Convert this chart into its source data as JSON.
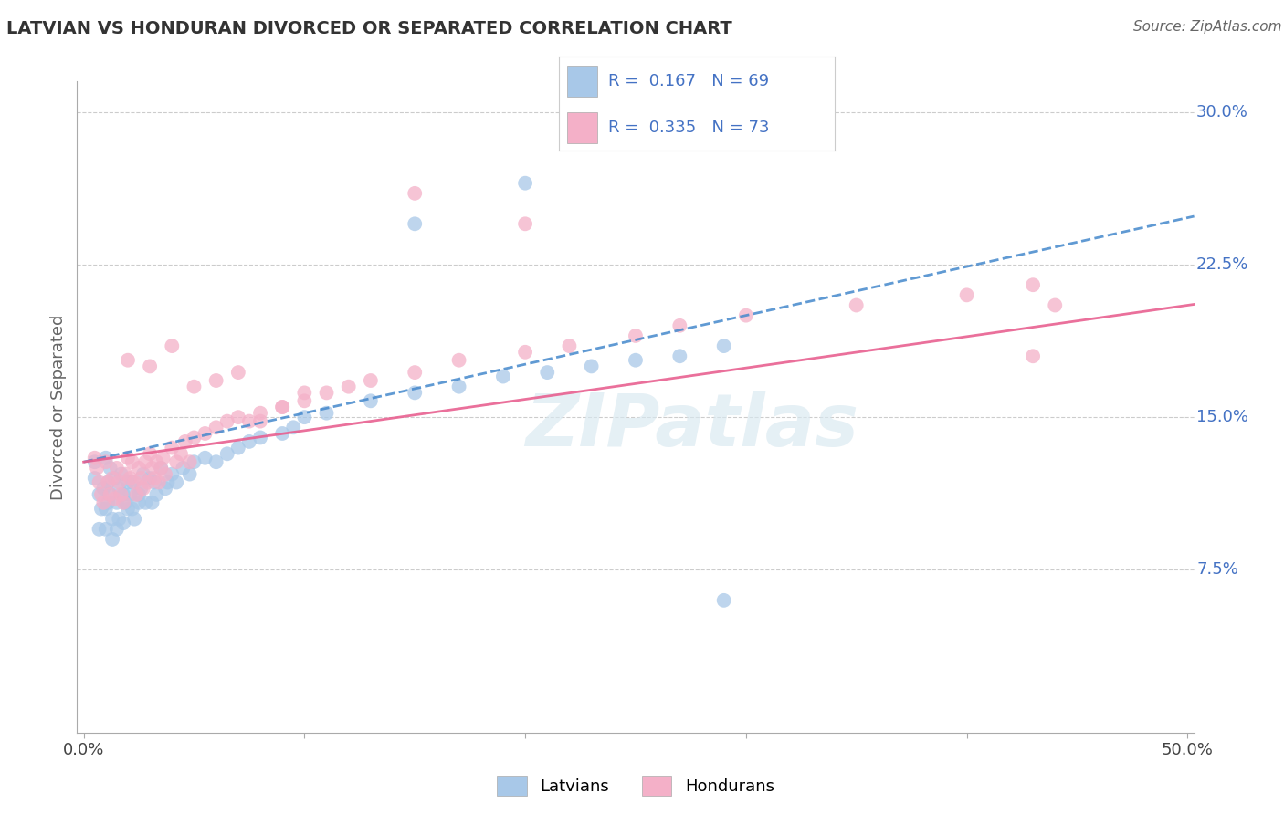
{
  "title": "LATVIAN VS HONDURAN DIVORCED OR SEPARATED CORRELATION CHART",
  "source_text": "Source: ZipAtlas.com",
  "watermark": "ZIPatlas",
  "ylabel": "Divorced or Separated",
  "xlim": [
    -0.003,
    0.503
  ],
  "ylim": [
    -0.005,
    0.315
  ],
  "xticks": [
    0.0,
    0.1,
    0.2,
    0.3,
    0.4,
    0.5
  ],
  "xticklabels": [
    "0.0%",
    "",
    "",
    "",
    "",
    "50.0%"
  ],
  "yticks_right": [
    0.075,
    0.15,
    0.225,
    0.3
  ],
  "ytick_labels_right": [
    "7.5%",
    "15.0%",
    "22.5%",
    "30.0%"
  ],
  "latvian_color": "#a8c8e8",
  "honduran_color": "#f4b0c8",
  "latvian_line_color": "#4488cc",
  "honduran_line_color": "#e86090",
  "grid_color": "#cccccc",
  "latvian_R": 0.167,
  "latvian_N": 69,
  "honduran_R": 0.335,
  "honduran_N": 73,
  "legend_R_color": "#4472c4",
  "background_color": "#ffffff",
  "latvians_x": [
    0.005,
    0.005,
    0.007,
    0.007,
    0.008,
    0.009,
    0.01,
    0.01,
    0.01,
    0.011,
    0.011,
    0.012,
    0.012,
    0.013,
    0.013,
    0.014,
    0.015,
    0.015,
    0.016,
    0.016,
    0.017,
    0.018,
    0.018,
    0.019,
    0.02,
    0.02,
    0.021,
    0.022,
    0.022,
    0.023,
    0.025,
    0.025,
    0.026,
    0.027,
    0.028,
    0.03,
    0.031,
    0.032,
    0.033,
    0.035,
    0.037,
    0.038,
    0.04,
    0.042,
    0.045,
    0.048,
    0.05,
    0.055,
    0.06,
    0.065,
    0.07,
    0.075,
    0.08,
    0.09,
    0.095,
    0.1,
    0.11,
    0.13,
    0.15,
    0.17,
    0.19,
    0.21,
    0.23,
    0.25,
    0.27,
    0.29,
    0.29,
    0.15,
    0.2
  ],
  "latvians_y": [
    0.128,
    0.12,
    0.112,
    0.095,
    0.105,
    0.115,
    0.13,
    0.105,
    0.095,
    0.108,
    0.118,
    0.125,
    0.112,
    0.1,
    0.09,
    0.12,
    0.108,
    0.095,
    0.115,
    0.1,
    0.122,
    0.112,
    0.098,
    0.108,
    0.118,
    0.105,
    0.112,
    0.118,
    0.105,
    0.1,
    0.112,
    0.108,
    0.115,
    0.122,
    0.108,
    0.12,
    0.108,
    0.118,
    0.112,
    0.125,
    0.115,
    0.118,
    0.122,
    0.118,
    0.125,
    0.122,
    0.128,
    0.13,
    0.128,
    0.132,
    0.135,
    0.138,
    0.14,
    0.142,
    0.145,
    0.15,
    0.152,
    0.158,
    0.162,
    0.165,
    0.17,
    0.172,
    0.175,
    0.178,
    0.18,
    0.185,
    0.06,
    0.245,
    0.265
  ],
  "hondurans_x": [
    0.005,
    0.006,
    0.007,
    0.008,
    0.009,
    0.01,
    0.011,
    0.012,
    0.013,
    0.014,
    0.015,
    0.016,
    0.017,
    0.018,
    0.019,
    0.02,
    0.021,
    0.022,
    0.023,
    0.024,
    0.025,
    0.026,
    0.027,
    0.028,
    0.029,
    0.03,
    0.031,
    0.032,
    0.033,
    0.034,
    0.035,
    0.036,
    0.037,
    0.04,
    0.042,
    0.044,
    0.046,
    0.048,
    0.05,
    0.055,
    0.06,
    0.065,
    0.07,
    0.075,
    0.08,
    0.09,
    0.1,
    0.11,
    0.12,
    0.13,
    0.15,
    0.17,
    0.2,
    0.22,
    0.25,
    0.27,
    0.3,
    0.35,
    0.4,
    0.43,
    0.44,
    0.02,
    0.03,
    0.04,
    0.05,
    0.06,
    0.07,
    0.08,
    0.09,
    0.1,
    0.15,
    0.2,
    0.43
  ],
  "hondurans_y": [
    0.13,
    0.125,
    0.118,
    0.112,
    0.108,
    0.128,
    0.118,
    0.112,
    0.12,
    0.11,
    0.125,
    0.118,
    0.112,
    0.108,
    0.122,
    0.13,
    0.12,
    0.128,
    0.118,
    0.112,
    0.125,
    0.12,
    0.115,
    0.128,
    0.118,
    0.132,
    0.125,
    0.12,
    0.128,
    0.118,
    0.125,
    0.13,
    0.122,
    0.135,
    0.128,
    0.132,
    0.138,
    0.128,
    0.14,
    0.142,
    0.145,
    0.148,
    0.15,
    0.148,
    0.152,
    0.155,
    0.158,
    0.162,
    0.165,
    0.168,
    0.172,
    0.178,
    0.182,
    0.185,
    0.19,
    0.195,
    0.2,
    0.205,
    0.21,
    0.215,
    0.205,
    0.178,
    0.175,
    0.185,
    0.165,
    0.168,
    0.172,
    0.148,
    0.155,
    0.162,
    0.26,
    0.245,
    0.18
  ]
}
